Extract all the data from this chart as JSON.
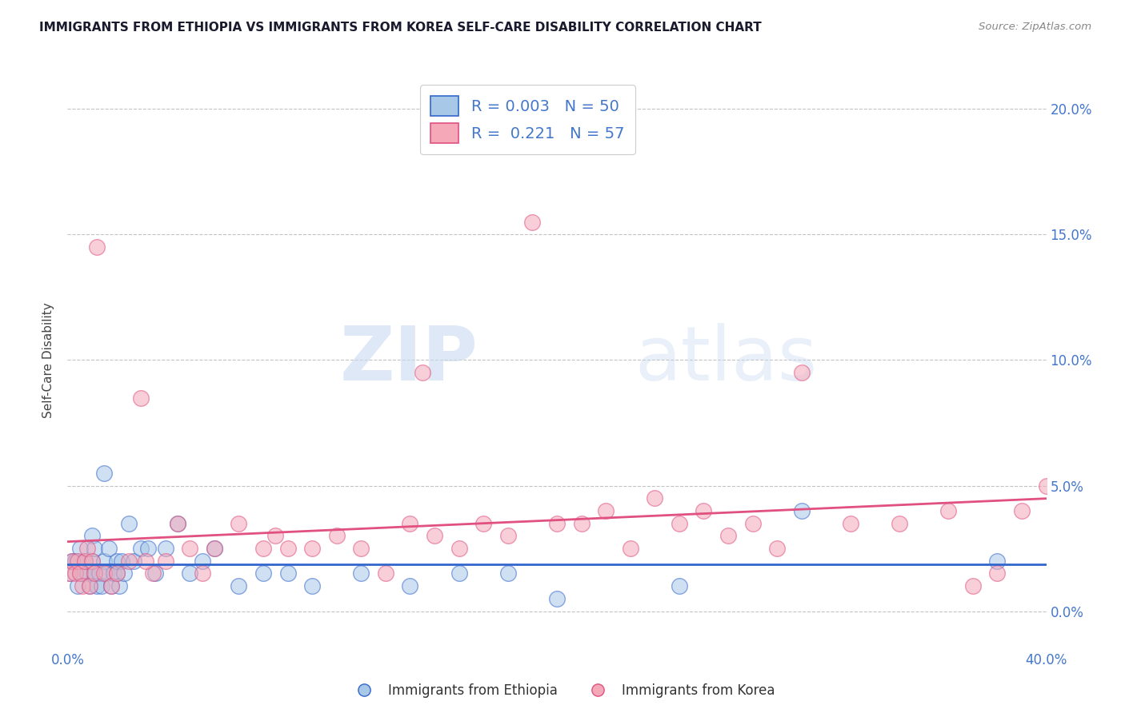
{
  "title": "IMMIGRANTS FROM ETHIOPIA VS IMMIGRANTS FROM KOREA SELF-CARE DISABILITY CORRELATION CHART",
  "source": "Source: ZipAtlas.com",
  "ylabel": "Self-Care Disability",
  "ytick_vals": [
    0.0,
    5.0,
    10.0,
    15.0,
    20.0
  ],
  "xlim": [
    0.0,
    40.0
  ],
  "ylim": [
    -1.5,
    21.5
  ],
  "color_ethiopia": "#a8c8e8",
  "color_korea": "#f4a8b8",
  "color_line_ethiopia": "#3366cc",
  "color_line_korea": "#e05080",
  "color_axis_ticks": "#4477cc",
  "watermark_zip": "ZIP",
  "watermark_atlas": "atlas",
  "ethiopia_x": [
    0.1,
    0.2,
    0.3,
    0.4,
    0.5,
    0.5,
    0.6,
    0.7,
    0.8,
    0.9,
    1.0,
    1.0,
    1.1,
    1.1,
    1.2,
    1.3,
    1.4,
    1.5,
    1.5,
    1.6,
    1.7,
    1.8,
    1.9,
    2.0,
    2.0,
    2.1,
    2.2,
    2.3,
    2.5,
    2.7,
    3.0,
    3.3,
    3.6,
    4.0,
    4.5,
    5.0,
    5.5,
    6.0,
    7.0,
    8.0,
    9.0,
    10.0,
    12.0,
    14.0,
    16.0,
    18.0,
    20.0,
    25.0,
    30.0,
    38.0
  ],
  "ethiopia_y": [
    1.5,
    2.0,
    2.0,
    1.0,
    1.5,
    2.5,
    1.5,
    2.0,
    1.5,
    1.0,
    2.0,
    3.0,
    1.5,
    2.5,
    1.0,
    1.5,
    1.0,
    2.0,
    5.5,
    1.5,
    2.5,
    1.0,
    1.5,
    1.5,
    2.0,
    1.0,
    2.0,
    1.5,
    3.5,
    2.0,
    2.5,
    2.5,
    1.5,
    2.5,
    3.5,
    1.5,
    2.0,
    2.5,
    1.0,
    1.5,
    1.5,
    1.0,
    1.5,
    1.0,
    1.5,
    1.5,
    0.5,
    1.0,
    4.0,
    2.0
  ],
  "korea_x": [
    0.1,
    0.2,
    0.3,
    0.4,
    0.5,
    0.6,
    0.7,
    0.8,
    0.9,
    1.0,
    1.1,
    1.2,
    1.5,
    1.8,
    2.0,
    2.5,
    3.0,
    3.5,
    4.0,
    4.5,
    5.0,
    5.5,
    6.0,
    7.0,
    8.0,
    9.0,
    10.0,
    11.0,
    12.0,
    13.0,
    14.0,
    15.0,
    16.0,
    17.0,
    18.0,
    19.0,
    20.0,
    21.0,
    22.0,
    23.0,
    24.0,
    25.0,
    26.0,
    27.0,
    28.0,
    29.0,
    30.0,
    32.0,
    34.0,
    36.0,
    37.0,
    38.0,
    39.0,
    40.0,
    14.5,
    8.5,
    3.2
  ],
  "korea_y": [
    1.5,
    2.0,
    1.5,
    2.0,
    1.5,
    1.0,
    2.0,
    2.5,
    1.0,
    2.0,
    1.5,
    14.5,
    1.5,
    1.0,
    1.5,
    2.0,
    8.5,
    1.5,
    2.0,
    3.5,
    2.5,
    1.5,
    2.5,
    3.5,
    2.5,
    2.5,
    2.5,
    3.0,
    2.5,
    1.5,
    3.5,
    3.0,
    2.5,
    3.5,
    3.0,
    15.5,
    3.5,
    3.5,
    4.0,
    2.5,
    4.5,
    3.5,
    4.0,
    3.0,
    3.5,
    2.5,
    9.5,
    3.5,
    3.5,
    4.0,
    1.0,
    1.5,
    4.0,
    5.0,
    9.5,
    3.0,
    2.0
  ]
}
